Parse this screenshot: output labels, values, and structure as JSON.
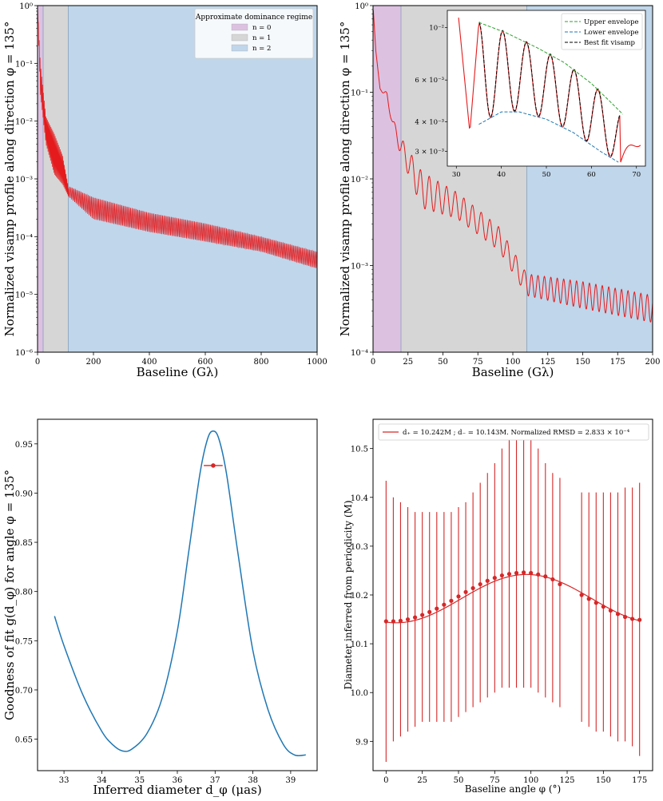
{
  "chart_data": [
    {
      "type": "line",
      "panel": "top-left",
      "xlabel": "Baseline (Gλ)",
      "ylabel": "Normalized visamp profile along direction φ = 135°",
      "xlim": [
        0,
        1000
      ],
      "ylim": [
        1e-06,
        1
      ],
      "yscale": "log",
      "xticks": [
        "0",
        "200",
        "400",
        "600",
        "800",
        "1000"
      ],
      "yticks": [
        "10⁻⁶",
        "10⁻⁵",
        "10⁻⁴",
        "10⁻³",
        "10⁻²",
        "10⁻¹",
        "10⁰"
      ],
      "regions": [
        {
          "label": "n = 0",
          "x0": 0,
          "x1": 20,
          "color": "#dcc2e0"
        },
        {
          "label": "n = 1",
          "x0": 20,
          "x1": 110,
          "color": "#d6d6d6"
        },
        {
          "label": "n = 2",
          "x0": 110,
          "x1": 1000,
          "color": "#c0d6ea"
        }
      ],
      "legend_title": "Approximate dominance regime",
      "legend_position": "top-right",
      "envelope_upper": [
        [
          0,
          1.0
        ],
        [
          10,
          0.1
        ],
        [
          30,
          0.012
        ],
        [
          60,
          0.006
        ],
        [
          90,
          0.0025
        ],
        [
          110,
          0.00075
        ],
        [
          200,
          0.00048
        ],
        [
          400,
          0.00026
        ],
        [
          600,
          0.00017
        ],
        [
          800,
          0.0001
        ],
        [
          1000,
          5.5e-05
        ]
      ],
      "envelope_lower": [
        [
          0,
          1.0
        ],
        [
          10,
          0.03
        ],
        [
          30,
          0.004
        ],
        [
          60,
          0.0012
        ],
        [
          90,
          0.0008
        ],
        [
          110,
          0.0005
        ],
        [
          200,
          0.0002
        ],
        [
          400,
          0.00012
        ],
        [
          600,
          8.2e-05
        ],
        [
          800,
          5.5e-05
        ],
        [
          1000,
          2.8e-05
        ]
      ],
      "series_color": "#e41a1c"
    },
    {
      "type": "line",
      "panel": "top-right",
      "xlabel": "Baseline (Gλ)",
      "ylabel": "Normalized visamp profile along direction φ = 135°",
      "xlim": [
        0,
        200
      ],
      "ylim": [
        0.0001,
        1
      ],
      "yscale": "log",
      "xticks": [
        "0",
        "25",
        "50",
        "75",
        "100",
        "125",
        "150",
        "175",
        "200"
      ],
      "yticks": [
        "10⁻⁴",
        "10⁻³",
        "10⁻²",
        "10⁻¹",
        "10⁰"
      ],
      "regions": [
        {
          "x0": 0,
          "x1": 20,
          "color": "#dcc2e0"
        },
        {
          "x0": 20,
          "x1": 110,
          "color": "#d6d6d6"
        },
        {
          "x0": 110,
          "x1": 200,
          "color": "#c0d6ea"
        }
      ],
      "inset": {
        "xlim": [
          28,
          72
        ],
        "ylim": [
          0.0026,
          0.0118
        ],
        "yscale": "log",
        "xticks": [
          "30",
          "40",
          "50",
          "60",
          "70"
        ],
        "yticks": [
          {
            "value": 0.003,
            "label": "3 × 10⁻³"
          },
          {
            "value": 0.004,
            "label": "4 × 10⁻³"
          },
          {
            "value": 0.006,
            "label": "6 × 10⁻³"
          },
          {
            "value": 0.01,
            "label": "10⁻²"
          }
        ],
        "legend": [
          "Upper envelope",
          "Lower envelope",
          "Best fit visamp"
        ],
        "legend_position": "top-right",
        "upper_envelope": [
          [
            35,
            0.0105
          ],
          [
            41,
            0.0095
          ],
          [
            48,
            0.0082
          ],
          [
            54,
            0.0071
          ],
          [
            60,
            0.0058
          ],
          [
            64,
            0.0049
          ],
          [
            67,
            0.0043
          ]
        ],
        "lower_envelope": [
          [
            35,
            0.0039
          ],
          [
            40,
            0.0044
          ],
          [
            44,
            0.0044
          ],
          [
            50,
            0.0041
          ],
          [
            56,
            0.0036
          ],
          [
            62,
            0.003
          ],
          [
            66,
            0.0027
          ]
        ]
      },
      "series_color": "#e41a1c"
    },
    {
      "type": "line",
      "panel": "bottom-left",
      "xlabel": "Inferred diameter d_φ (μas)",
      "ylabel": "Goodness of fit g(d_φ) for angle φ = 135°",
      "xlim": [
        32.3,
        39.7
      ],
      "ylim": [
        0.618,
        0.975
      ],
      "xticks": [
        "33",
        "34",
        "35",
        "36",
        "37",
        "38",
        "39"
      ],
      "yticks": [
        "0.65",
        "0.70",
        "0.75",
        "0.80",
        "0.85",
        "0.90",
        "0.95"
      ],
      "x": [
        32.75,
        33.0,
        33.5,
        34.0,
        34.3,
        34.55,
        34.8,
        35.2,
        35.6,
        36.0,
        36.3,
        36.6,
        36.8,
        36.95,
        37.1,
        37.3,
        37.6,
        38.0,
        38.4,
        38.8,
        39.1,
        39.4
      ],
      "y": [
        0.775,
        0.745,
        0.695,
        0.658,
        0.644,
        0.638,
        0.64,
        0.656,
        0.692,
        0.76,
        0.84,
        0.92,
        0.955,
        0.963,
        0.955,
        0.92,
        0.84,
        0.74,
        0.68,
        0.645,
        0.634,
        0.634
      ],
      "best_fit": {
        "x": 36.95,
        "y": 0.928,
        "xerr_low": 36.7,
        "xerr_high": 37.2
      },
      "line_color": "#1f77b4",
      "marker_color": "#d62728"
    },
    {
      "type": "scatter",
      "panel": "bottom-right",
      "xlabel": "Baseline angle φ (°)",
      "ylabel": "Diameter inferred from periodicity (M)",
      "xlim": [
        -9,
        184
      ],
      "ylim": [
        9.84,
        10.56
      ],
      "xticks": [
        "0",
        "25",
        "50",
        "75",
        "100",
        "125",
        "150",
        "175"
      ],
      "yticks": [
        "9.9",
        "10.0",
        "10.1",
        "10.2",
        "10.3",
        "10.4",
        "10.5"
      ],
      "legend": "d₊ = 10.242M ; d₋ = 10.143M. Normalized RMSD = 2.833 × 10⁻⁴",
      "legend_position": "top",
      "points": [
        {
          "x": 0,
          "y": 10.146,
          "lo": 9.858,
          "hi": 10.434
        },
        {
          "x": 5,
          "y": 10.146,
          "lo": 9.9,
          "hi": 10.4
        },
        {
          "x": 10,
          "y": 10.147,
          "lo": 9.91,
          "hi": 10.39
        },
        {
          "x": 15,
          "y": 10.15,
          "lo": 9.92,
          "hi": 10.38
        },
        {
          "x": 20,
          "y": 10.154,
          "lo": 9.93,
          "hi": 10.37
        },
        {
          "x": 25,
          "y": 10.159,
          "lo": 9.94,
          "hi": 10.37
        },
        {
          "x": 30,
          "y": 10.165,
          "lo": 9.94,
          "hi": 10.37
        },
        {
          "x": 35,
          "y": 10.172,
          "lo": 9.94,
          "hi": 10.37
        },
        {
          "x": 40,
          "y": 10.18,
          "lo": 9.94,
          "hi": 10.37
        },
        {
          "x": 45,
          "y": 10.188,
          "lo": 9.94,
          "hi": 10.37
        },
        {
          "x": 50,
          "y": 10.197,
          "lo": 9.95,
          "hi": 10.38
        },
        {
          "x": 55,
          "y": 10.206,
          "lo": 9.96,
          "hi": 10.39
        },
        {
          "x": 60,
          "y": 10.214,
          "lo": 9.97,
          "hi": 10.41
        },
        {
          "x": 65,
          "y": 10.222,
          "lo": 9.98,
          "hi": 10.43
        },
        {
          "x": 70,
          "y": 10.229,
          "lo": 9.99,
          "hi": 10.45
        },
        {
          "x": 75,
          "y": 10.235,
          "lo": 10.0,
          "hi": 10.47
        },
        {
          "x": 80,
          "y": 10.24,
          "lo": 10.01,
          "hi": 10.5
        },
        {
          "x": 85,
          "y": 10.243,
          "lo": 10.01,
          "hi": 10.53
        },
        {
          "x": 90,
          "y": 10.245,
          "lo": 10.01,
          "hi": 10.55
        },
        {
          "x": 95,
          "y": 10.246,
          "lo": 10.01,
          "hi": 10.55
        },
        {
          "x": 100,
          "y": 10.245,
          "lo": 10.01,
          "hi": 10.53
        },
        {
          "x": 105,
          "y": 10.242,
          "lo": 10.0,
          "hi": 10.5
        },
        {
          "x": 110,
          "y": 10.238,
          "lo": 9.99,
          "hi": 10.47
        },
        {
          "x": 115,
          "y": 10.232,
          "lo": 9.98,
          "hi": 10.45
        },
        {
          "x": 120,
          "y": 10.222,
          "lo": 9.97,
          "hi": 10.44
        },
        {
          "x": 135,
          "y": 10.2,
          "lo": 9.94,
          "hi": 10.41
        },
        {
          "x": 140,
          "y": 10.192,
          "lo": 9.93,
          "hi": 10.41
        },
        {
          "x": 145,
          "y": 10.184,
          "lo": 9.92,
          "hi": 10.41
        },
        {
          "x": 150,
          "y": 10.176,
          "lo": 9.92,
          "hi": 10.41
        },
        {
          "x": 155,
          "y": 10.168,
          "lo": 9.91,
          "hi": 10.41
        },
        {
          "x": 160,
          "y": 10.161,
          "lo": 9.9,
          "hi": 10.41
        },
        {
          "x": 165,
          "y": 10.155,
          "lo": 9.9,
          "hi": 10.42
        },
        {
          "x": 170,
          "y": 10.151,
          "lo": 9.89,
          "hi": 10.42
        },
        {
          "x": 175,
          "y": 10.149,
          "lo": 9.87,
          "hi": 10.43
        }
      ],
      "fit_curve": {
        "mean": 10.1925,
        "amplitude": 0.0495,
        "period_deg": 180,
        "peak_deg": 97
      },
      "color": "#d62728"
    }
  ]
}
